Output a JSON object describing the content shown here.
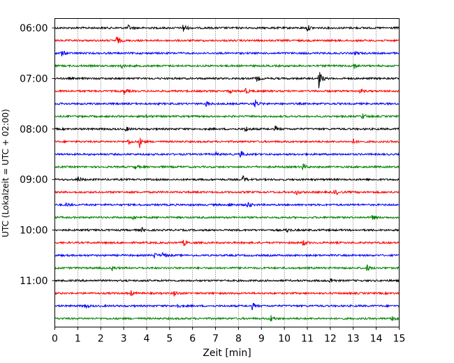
{
  "chart_data": {
    "type": "line",
    "title": "",
    "xlabel": "Zeit  [min]",
    "ylabel": "UTC (Lokalzeit = UTC + 02:00)",
    "xlim": [
      0,
      15
    ],
    "x_ticks": [
      "0",
      "1",
      "2",
      "3",
      "4",
      "5",
      "6",
      "7",
      "8",
      "9",
      "10",
      "11",
      "12",
      "13",
      "14",
      "15"
    ],
    "y_tick_labels": [
      "06:00",
      "07:00",
      "08:00",
      "09:00",
      "10:00",
      "11:00"
    ],
    "grid": "vertical dotted",
    "colors": [
      "#000000",
      "#ff0000",
      "#0000ff",
      "#008000"
    ],
    "traces": [
      {
        "start": "06:00",
        "color": "#000000",
        "events": [
          {
            "t": 3.2,
            "amp": 0.5
          },
          {
            "t": 5.6,
            "amp": 0.9
          },
          {
            "t": 11.0,
            "amp": 0.6
          }
        ]
      },
      {
        "start": "06:15",
        "color": "#ff0000",
        "events": [
          {
            "t": 2.7,
            "amp": 0.9
          }
        ]
      },
      {
        "start": "06:30",
        "color": "#0000ff",
        "events": [
          {
            "t": 0.3,
            "amp": 0.6
          },
          {
            "t": 13.1,
            "amp": 0.4
          }
        ]
      },
      {
        "start": "06:45",
        "color": "#008000",
        "events": [
          {
            "t": 2.9,
            "amp": 0.5
          },
          {
            "t": 13.0,
            "amp": 0.9
          }
        ]
      },
      {
        "start": "07:00",
        "color": "#000000",
        "events": [
          {
            "t": 8.8,
            "amp": 0.6
          },
          {
            "t": 11.5,
            "amp": 1.8
          }
        ]
      },
      {
        "start": "07:15",
        "color": "#ff0000",
        "events": [
          {
            "t": 3.0,
            "amp": 0.6
          },
          {
            "t": 7.6,
            "amp": 0.4
          },
          {
            "t": 8.3,
            "amp": 0.6
          },
          {
            "t": 13.3,
            "amp": 0.4
          }
        ]
      },
      {
        "start": "07:30",
        "color": "#0000ff",
        "events": [
          {
            "t": 6.6,
            "amp": 0.5
          },
          {
            "t": 8.7,
            "amp": 0.9
          }
        ]
      },
      {
        "start": "07:45",
        "color": "#008000",
        "events": [
          {
            "t": 4.0,
            "amp": 0.4
          },
          {
            "t": 13.4,
            "amp": 0.6
          }
        ]
      },
      {
        "start": "08:00",
        "color": "#000000",
        "events": [
          {
            "t": 3.1,
            "amp": 0.4
          },
          {
            "t": 8.3,
            "amp": 0.6
          },
          {
            "t": 9.6,
            "amp": 0.5
          },
          {
            "t": 15.0,
            "amp": 0.5
          }
        ]
      },
      {
        "start": "08:15",
        "color": "#ff0000",
        "events": [
          {
            "t": 3.2,
            "amp": 0.5
          },
          {
            "t": 3.7,
            "amp": 1.0
          },
          {
            "t": 13.0,
            "amp": 0.4
          }
        ]
      },
      {
        "start": "08:30",
        "color": "#0000ff",
        "events": [
          {
            "t": 7.0,
            "amp": 0.3
          },
          {
            "t": 8.1,
            "amp": 0.7
          }
        ]
      },
      {
        "start": "08:45",
        "color": "#008000",
        "events": [
          {
            "t": 3.5,
            "amp": 0.4
          },
          {
            "t": 10.8,
            "amp": 0.6
          }
        ]
      },
      {
        "start": "09:00",
        "color": "#000000",
        "events": [
          {
            "t": 1.0,
            "amp": 0.6
          },
          {
            "t": 8.2,
            "amp": 0.7
          }
        ]
      },
      {
        "start": "09:15",
        "color": "#ff0000",
        "events": [
          {
            "t": 10.5,
            "amp": 0.6
          },
          {
            "t": 12.2,
            "amp": 0.6
          }
        ]
      },
      {
        "start": "09:30",
        "color": "#0000ff",
        "events": [
          {
            "t": 0.5,
            "amp": 0.4
          },
          {
            "t": 7.6,
            "amp": 0.4
          },
          {
            "t": 8.4,
            "amp": 0.7
          }
        ]
      },
      {
        "start": "09:45",
        "color": "#008000",
        "events": [
          {
            "t": 3.4,
            "amp": 0.4
          },
          {
            "t": 13.8,
            "amp": 0.6
          }
        ]
      },
      {
        "start": "10:00",
        "color": "#000000",
        "events": [
          {
            "t": 3.8,
            "amp": 0.4
          },
          {
            "t": 10.1,
            "amp": 0.4
          }
        ]
      },
      {
        "start": "10:15",
        "color": "#ff0000",
        "events": [
          {
            "t": 5.6,
            "amp": 0.7
          },
          {
            "t": 10.8,
            "amp": 0.6
          }
        ]
      },
      {
        "start": "10:30",
        "color": "#0000ff",
        "events": [
          {
            "t": 4.3,
            "amp": 0.6
          },
          {
            "t": 4.7,
            "amp": 0.6
          }
        ]
      },
      {
        "start": "10:45",
        "color": "#008000",
        "events": [
          {
            "t": 2.5,
            "amp": 0.4
          },
          {
            "t": 13.6,
            "amp": 0.6
          }
        ]
      },
      {
        "start": "11:00",
        "color": "#000000",
        "events": [
          {
            "t": 12.0,
            "amp": 0.6
          }
        ]
      },
      {
        "start": "11:15",
        "color": "#ff0000",
        "events": [
          {
            "t": 3.3,
            "amp": 0.5
          },
          {
            "t": 5.2,
            "amp": 0.6
          }
        ]
      },
      {
        "start": "11:30",
        "color": "#0000ff",
        "events": [
          {
            "t": 1.3,
            "amp": 0.5
          },
          {
            "t": 5.3,
            "amp": 0.5
          },
          {
            "t": 8.6,
            "amp": 0.6
          }
        ]
      },
      {
        "start": "11:45",
        "color": "#008000",
        "events": [
          {
            "t": 9.4,
            "amp": 0.7
          },
          {
            "t": 14.7,
            "amp": 0.6
          }
        ]
      }
    ]
  }
}
